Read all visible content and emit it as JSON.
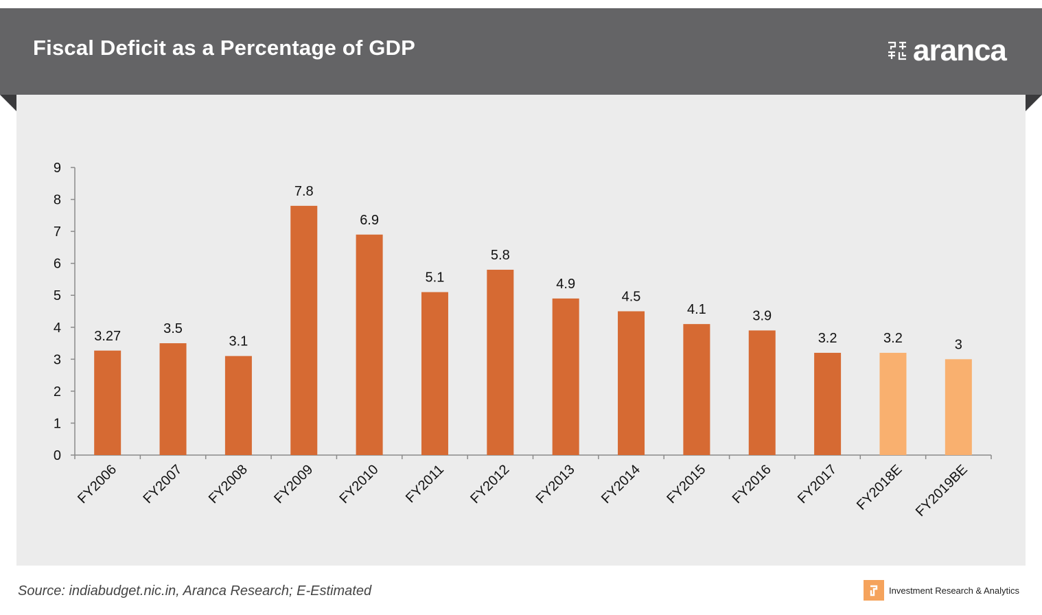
{
  "header": {
    "title": "Fiscal Deficit as a Percentage of GDP",
    "logo_text": "aranca",
    "logo_icon": "aranca-maze-icon"
  },
  "footer": {
    "source": "Source: indiabudget.nic.in, Aranca Research; E-Estimated",
    "tagline": "Investment Research & Analytics",
    "tagline_icon": "aranca-badge-icon"
  },
  "colors": {
    "header_bg": "#646466",
    "panel_bg": "#ececec",
    "bar_actual": "#d66a33",
    "bar_estimate": "#f9b06f"
  },
  "chart_data": {
    "type": "bar",
    "categories": [
      "FY2006",
      "FY2007",
      "FY2008",
      "FY2009",
      "FY2010",
      "FY2011",
      "FY2012",
      "FY2013",
      "FY2014",
      "FY2015",
      "FY2016",
      "FY2017",
      "FY2018E",
      "FY2019BE"
    ],
    "values": [
      3.27,
      3.5,
      3.1,
      7.8,
      6.9,
      5.1,
      5.8,
      4.9,
      4.5,
      4.1,
      3.9,
      3.2,
      3.2,
      3
    ],
    "data_labels": [
      "3.27",
      "3.5",
      "3.1",
      "7.8",
      "6.9",
      "5.1",
      "5.8",
      "4.9",
      "4.5",
      "4.1",
      "3.9",
      "3.2",
      "3.2",
      "3"
    ],
    "estimated": [
      false,
      false,
      false,
      false,
      false,
      false,
      false,
      false,
      false,
      false,
      false,
      false,
      true,
      true
    ],
    "ylim": [
      0,
      9
    ],
    "yticks": [
      0,
      1,
      2,
      3,
      4,
      5,
      6,
      7,
      8,
      9
    ],
    "title": "",
    "xlabel": "",
    "ylabel": "",
    "grid": false,
    "legend": false
  }
}
